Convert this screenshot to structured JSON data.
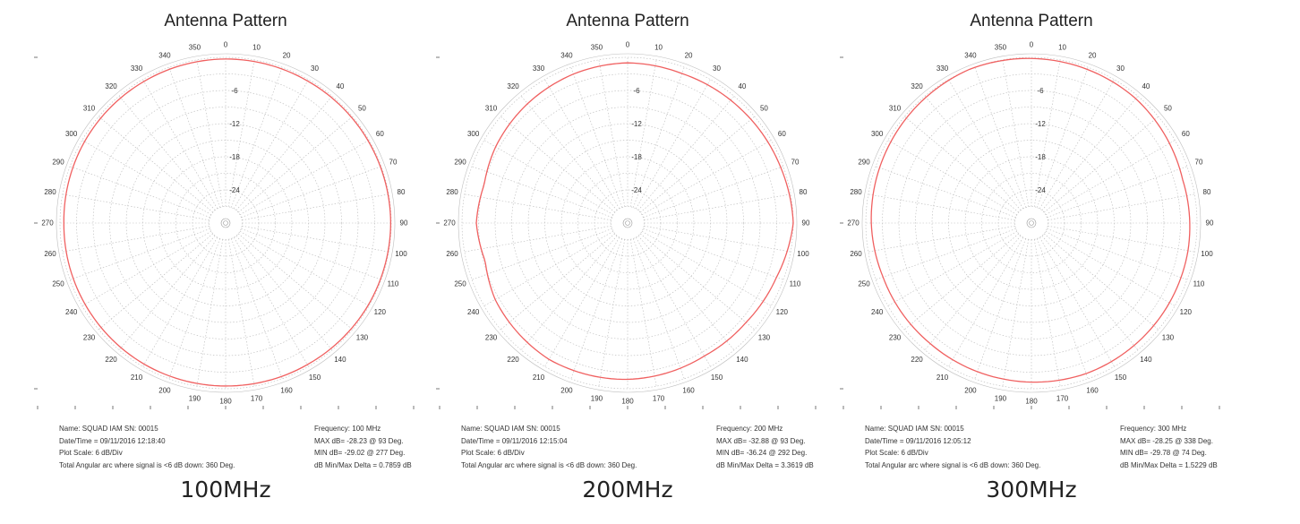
{
  "chart_data": [
    {
      "type": "polar-line",
      "title": "Antenna Pattern",
      "caption": "100MHz",
      "angle_ticks": [
        "0",
        "10",
        "20",
        "30",
        "40",
        "50",
        "60",
        "70",
        "80",
        "90",
        "100",
        "110",
        "120",
        "130",
        "140",
        "150",
        "160",
        "170",
        "180",
        "190",
        "200",
        "210",
        "220",
        "230",
        "240",
        "250",
        "260",
        "270",
        "280",
        "290",
        "300",
        "310",
        "320",
        "330",
        "340",
        "350"
      ],
      "radial_ticks": [
        "-6",
        "-12",
        "-18",
        "-24"
      ],
      "radial_range": [
        -30,
        0
      ],
      "series": [
        {
          "color": "#f06060",
          "angles": [
            0,
            30,
            60,
            90,
            120,
            150,
            180,
            210,
            240,
            270,
            300,
            330
          ],
          "values": [
            -0.3,
            -0.3,
            -0.2,
            -0.1,
            -0.2,
            -0.4,
            -0.5,
            -0.5,
            -0.6,
            -0.7,
            -0.5,
            -0.4
          ]
        }
      ],
      "info": {
        "name": "Name: SQUAD IAM  SN: 00015",
        "datetime": "Date/Time = 09/11/2016 12:18:40",
        "plot_scale": "Plot Scale: 6 dB/Div",
        "arc": "Total Angular arc where signal is <6 dB down: 360 Deg.",
        "frequency": "Frequency: 100 MHz",
        "max": "MAX dB= -28.23 @ 93 Deg.",
        "min": "MIN dB= -29.02 @ 277 Deg.",
        "delta": "dB Min/Max Delta = 0.7859 dB"
      }
    },
    {
      "type": "polar-line",
      "title": "Antenna Pattern",
      "caption": "200MHz",
      "angle_ticks": [
        "0",
        "10",
        "20",
        "30",
        "40",
        "50",
        "60",
        "70",
        "80",
        "90",
        "100",
        "110",
        "120",
        "130",
        "140",
        "150",
        "160",
        "170",
        "180",
        "190",
        "200",
        "210",
        "220",
        "230",
        "240",
        "250",
        "260",
        "270",
        "280",
        "290",
        "300",
        "310",
        "320",
        "330",
        "340",
        "350"
      ],
      "radial_ticks": [
        "-6",
        "-12",
        "-18",
        "-24"
      ],
      "radial_range": [
        -30,
        0
      ],
      "series": [
        {
          "color": "#f06060",
          "angles": [
            0,
            20,
            45,
            70,
            90,
            110,
            130,
            150,
            180,
            210,
            240,
            255,
            270,
            285,
            300,
            320,
            340
          ],
          "values": [
            -1.0,
            -1.2,
            -0.9,
            -0.5,
            0.0,
            -1.3,
            -2.0,
            -2.2,
            -1.7,
            -1.5,
            -2.3,
            -3.3,
            -2.6,
            -3.1,
            -2.4,
            -1.8,
            -1.3
          ]
        }
      ],
      "info": {
        "name": "Name: SQUAD IAM  SN: 00015",
        "datetime": "Date/Time = 09/11/2016 12:15:04",
        "plot_scale": "Plot Scale: 6 dB/Div",
        "arc": "Total Angular arc where signal is <6 dB down: 360 Deg.",
        "frequency": "Frequency: 200 MHz",
        "max": "MAX dB= -32.88 @ 93 Deg.",
        "min": "MIN dB= -36.24 @ 292 Deg.",
        "delta": "dB Min/Max Delta = 3.3619 dB"
      }
    },
    {
      "type": "polar-line",
      "title": "Antenna Pattern",
      "caption": "300MHz",
      "angle_ticks": [
        "0",
        "10",
        "20",
        "30",
        "40",
        "50",
        "60",
        "70",
        "80",
        "90",
        "100",
        "110",
        "120",
        "130",
        "140",
        "150",
        "160",
        "170",
        "180",
        "190",
        "200",
        "210",
        "220",
        "230",
        "240",
        "250",
        "260",
        "270",
        "280",
        "290",
        "300",
        "310",
        "320",
        "330",
        "340",
        "350"
      ],
      "radial_ticks": [
        "-6",
        "-12",
        "-18",
        "-24"
      ],
      "radial_range": [
        -30,
        0
      ],
      "series": [
        {
          "color": "#f06060",
          "angles": [
            0,
            40,
            74,
            100,
            130,
            160,
            190,
            220,
            250,
            270,
            300,
            338
          ],
          "values": [
            -0.2,
            -0.6,
            -1.5,
            -1.2,
            -1.1,
            -1.0,
            -1.3,
            -1.5,
            -1.4,
            -1.0,
            -0.6,
            0.0
          ]
        }
      ],
      "info": {
        "name": "Name: SQUAD IAM  SN: 00015",
        "datetime": "Date/Time = 09/11/2016 12:05:12",
        "plot_scale": "Plot Scale: 6 dB/Div",
        "arc": "Total Angular arc where signal is <6 dB down: 360 Deg.",
        "frequency": "Frequency: 300 MHz",
        "max": "MAX dB= -28.25 @ 338 Deg.",
        "min": "MIN dB= -29.78 @ 74 Deg.",
        "delta": "dB Min/Max Delta = 1.5229 dB"
      }
    }
  ]
}
